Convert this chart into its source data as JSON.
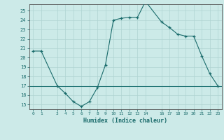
{
  "x": [
    0,
    1,
    3,
    4,
    5,
    6,
    7,
    8,
    9,
    10,
    11,
    12,
    13,
    14,
    16,
    17,
    18,
    19,
    20,
    21,
    22,
    23
  ],
  "y": [
    20.7,
    20.7,
    17.0,
    16.2,
    15.3,
    14.8,
    15.3,
    16.8,
    19.2,
    24.0,
    24.2,
    24.3,
    24.3,
    26.0,
    23.8,
    23.2,
    22.5,
    22.3,
    22.3,
    20.2,
    18.3,
    17.0
  ],
  "ref_y": 17.0,
  "ylim": [
    14.5,
    25.7
  ],
  "xlim": [
    -0.5,
    23.5
  ],
  "yticks": [
    15,
    16,
    17,
    18,
    19,
    20,
    21,
    22,
    23,
    24,
    25
  ],
  "xticks": [
    0,
    1,
    3,
    4,
    5,
    6,
    7,
    8,
    9,
    10,
    11,
    12,
    13,
    14,
    16,
    17,
    18,
    19,
    20,
    21,
    22,
    23
  ],
  "xlabel": "Humidex (Indice chaleur)",
  "bg_color": "#cceae8",
  "grid_color": "#aed4d2",
  "line_color": "#1a6b6b",
  "ref_line_color": "#1a7070",
  "tick_color": "#1a6b6b",
  "spine_color": "#555555"
}
